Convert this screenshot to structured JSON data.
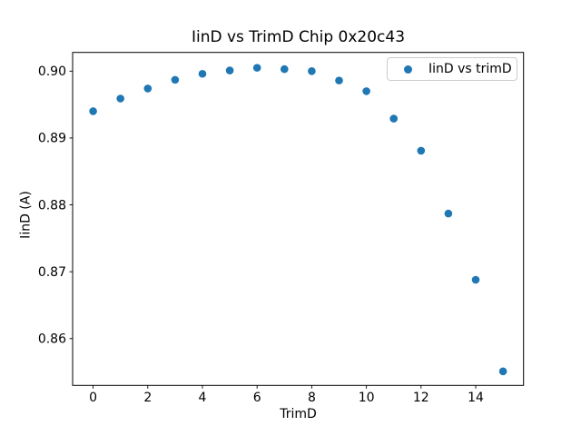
{
  "chart_data": {
    "type": "scatter",
    "title": "IinD vs TrimD Chip 0x20c43",
    "xlabel": "TrimD",
    "ylabel": "IinD (A)",
    "legend": [
      "IinD vs trimD"
    ],
    "legend_position": "upper right",
    "grid": false,
    "marker": "circle",
    "marker_color": "#1f77b4",
    "axis_color": "#000000",
    "background_color": "#ffffff",
    "legend_border_color": "#cccccc",
    "x": [
      0,
      1,
      2,
      3,
      4,
      5,
      6,
      7,
      8,
      9,
      10,
      11,
      12,
      13,
      14,
      15
    ],
    "y": [
      0.894,
      0.8959,
      0.8974,
      0.8987,
      0.8996,
      0.9001,
      0.9005,
      0.9003,
      0.9,
      0.8986,
      0.897,
      0.8929,
      0.8881,
      0.8787,
      0.8688,
      0.8551
    ],
    "xlim": [
      -0.75,
      15.75
    ],
    "ylim": [
      0.853,
      0.9028
    ],
    "xticks": [
      0,
      2,
      4,
      6,
      8,
      10,
      12,
      14
    ],
    "xtick_labels": [
      "0",
      "2",
      "4",
      "6",
      "8",
      "10",
      "12",
      "14"
    ],
    "yticks": [
      0.86,
      0.87,
      0.88,
      0.89,
      0.9
    ],
    "ytick_labels": [
      "0.86",
      "0.87",
      "0.88",
      "0.89",
      "0.90"
    ]
  }
}
